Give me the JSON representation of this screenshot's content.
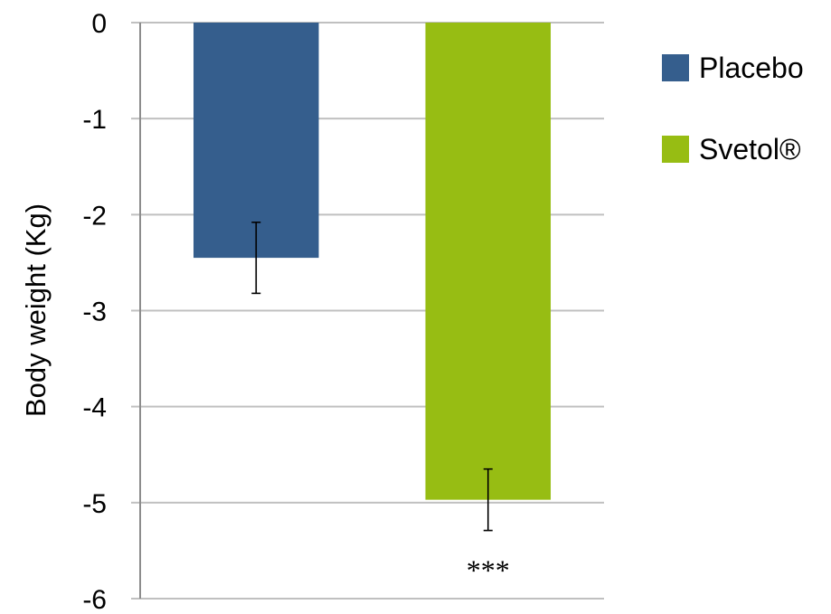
{
  "chart_data": {
    "type": "bar",
    "ylabel": "Body weight (Kg)",
    "ylim": [
      -6,
      0
    ],
    "yticks": [
      "0",
      "-1",
      "-2",
      "-3",
      "-4",
      "-5",
      "-6"
    ],
    "grid": true,
    "legend_position": "right",
    "series": [
      {
        "name": "Placebo",
        "value": -2.45,
        "error": 0.37,
        "color": "#355e8d"
      },
      {
        "name": "Svetol®",
        "value": -4.97,
        "error": 0.32,
        "color": "#97bd13"
      }
    ],
    "annotations": [
      {
        "series": "Svetol®",
        "text": "***"
      }
    ]
  }
}
